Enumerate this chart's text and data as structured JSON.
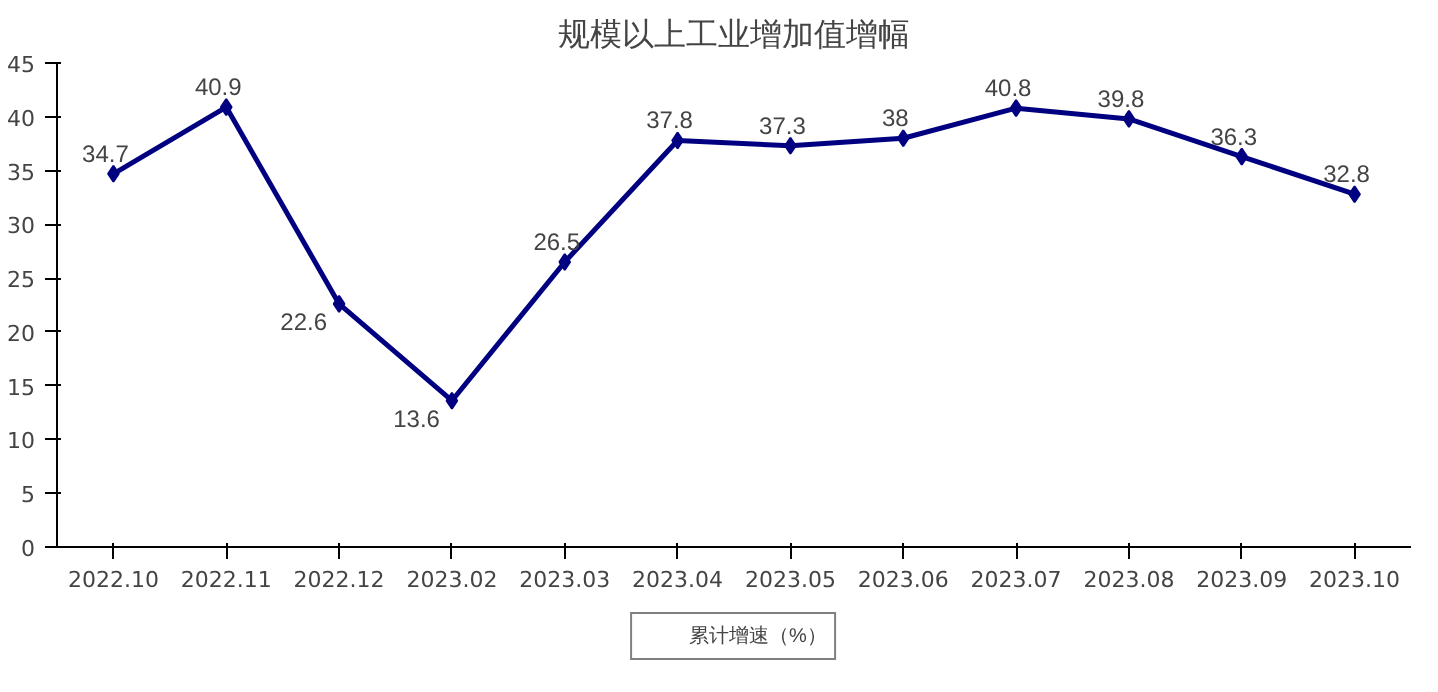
{
  "chart_data": {
    "type": "line",
    "title": "规模以上工业增加值增幅",
    "categories": [
      "2022.10",
      "2022.11",
      "2022.12",
      "2023.02",
      "2023.03",
      "2023.04",
      "2023.05",
      "2023.06",
      "2023.07",
      "2023.08",
      "2023.09",
      "2023.10"
    ],
    "series": [
      {
        "name": "累计增速（%）",
        "color": "#000080",
        "values": [
          34.7,
          40.9,
          22.6,
          13.6,
          26.5,
          37.8,
          37.3,
          38,
          40.8,
          39.8,
          36.3,
          32.8
        ]
      }
    ],
    "ylim": [
      0,
      45
    ],
    "yticks": [
      0,
      5,
      10,
      15,
      20,
      25,
      30,
      35,
      40,
      45
    ],
    "grid": false,
    "legend": "bottom",
    "marker": "diamond",
    "line_style": "solid",
    "data_labels": true
  }
}
